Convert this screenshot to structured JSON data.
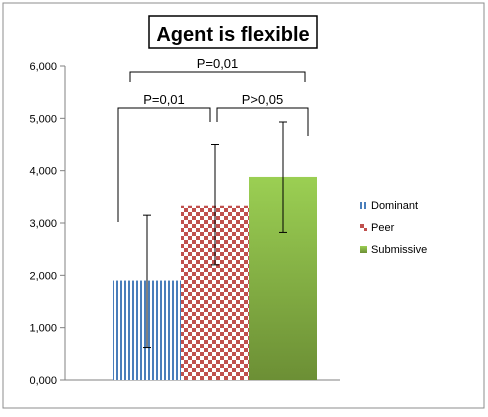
{
  "chart_data": {
    "type": "bar",
    "title": "Agent is flexible",
    "xlabel": "",
    "ylabel": "",
    "ylim": [
      0,
      6
    ],
    "y_ticks": [
      "0,000",
      "1,000",
      "2,000",
      "3,000",
      "4,000",
      "5,000",
      "6,000"
    ],
    "grid": false,
    "legend_position": "right",
    "series": [
      {
        "name": "Dominant",
        "value": 1.9,
        "error_low": 0.62,
        "error_high": 3.15,
        "color": "#4a7ebb",
        "pattern": "vertical-stripes"
      },
      {
        "name": "Peer",
        "value": 3.33,
        "error_low": 2.2,
        "error_high": 4.5,
        "color": "#c0504d",
        "pattern": "checkerboard"
      },
      {
        "name": "Submissive",
        "value": 3.88,
        "error_low": 2.82,
        "error_high": 4.93,
        "color": "#9bbb59",
        "pattern": "gradient"
      }
    ],
    "annotations": [
      {
        "text": "P=0,01",
        "from": "Dominant",
        "to": "Submissive"
      },
      {
        "text": "P=0,01",
        "from": "Dominant",
        "to": "Peer"
      },
      {
        "text": "P>0,05",
        "from": "Peer",
        "to": "Submissive"
      }
    ]
  }
}
